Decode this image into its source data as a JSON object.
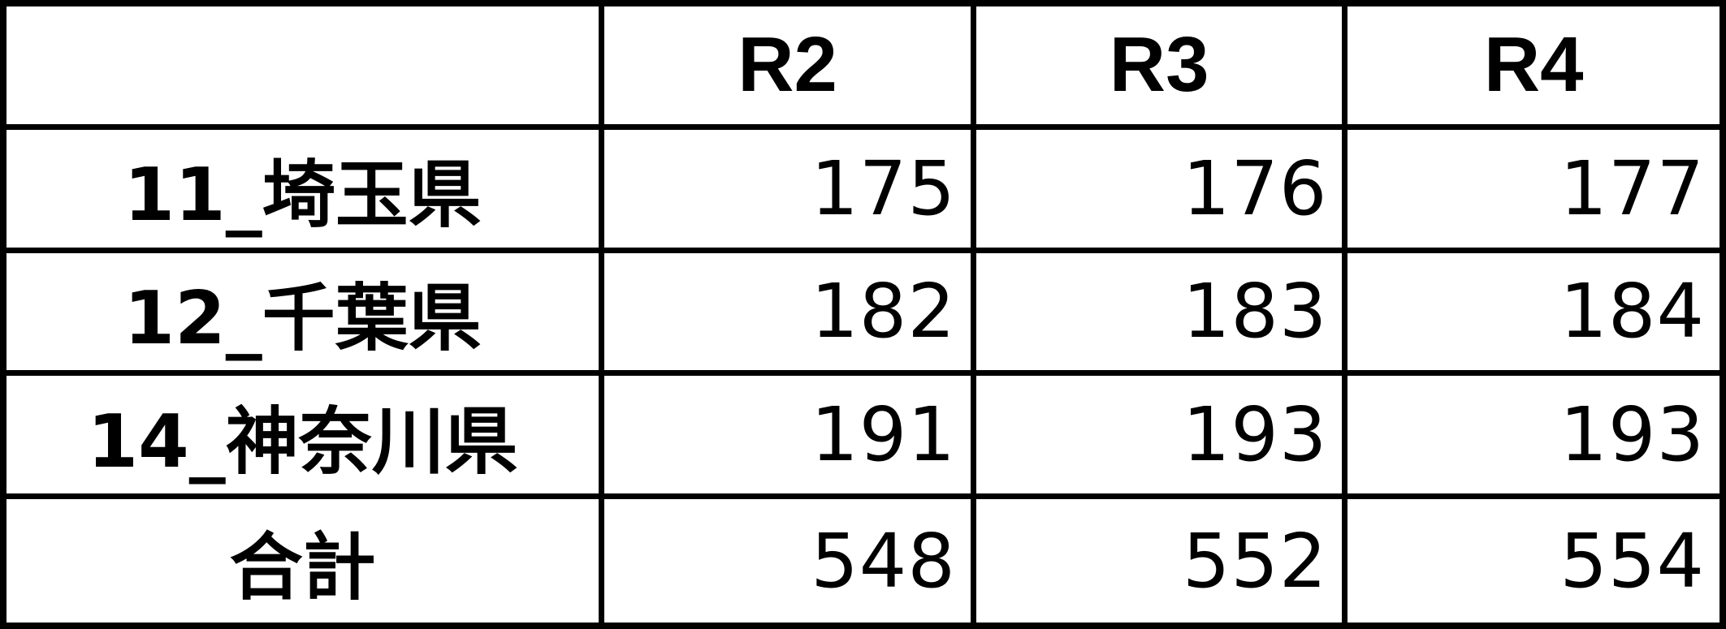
{
  "table": {
    "columns": [
      "",
      "R2",
      "R3",
      "R4"
    ],
    "rows": [
      {
        "label": "11_埼玉県",
        "values": [
          "175",
          "176",
          "177"
        ]
      },
      {
        "label": "12_千葉県",
        "values": [
          "182",
          "183",
          "184"
        ]
      },
      {
        "label": "14_神奈川県",
        "values": [
          "191",
          "193",
          "193"
        ]
      },
      {
        "label": "合計",
        "values": [
          "548",
          "552",
          "554"
        ]
      }
    ]
  }
}
